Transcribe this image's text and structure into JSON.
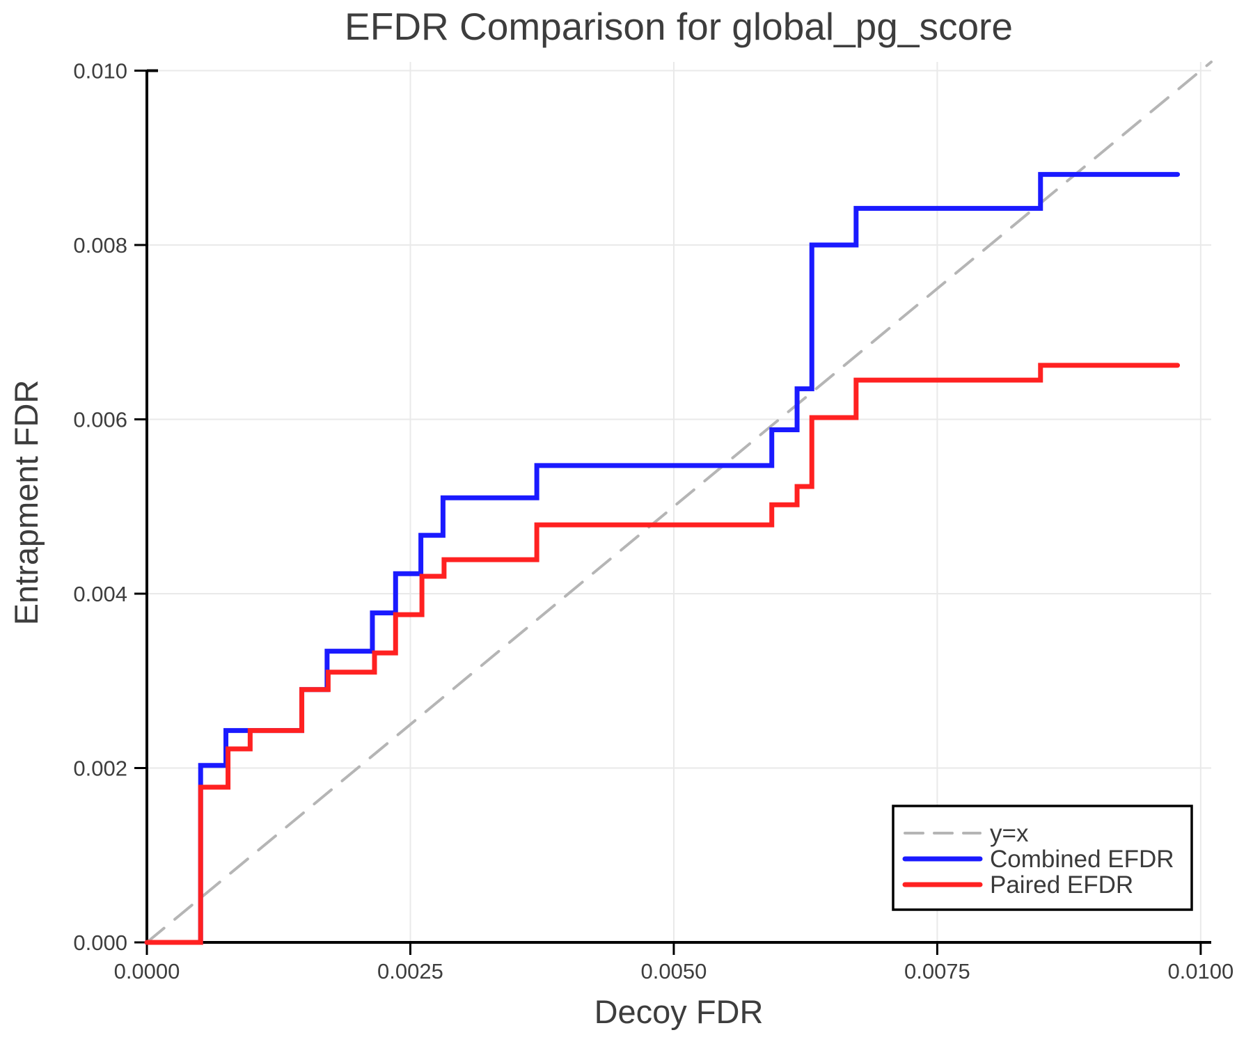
{
  "chart_data": {
    "type": "line",
    "title": "EFDR Comparison for global_pg_score",
    "xlabel": "Decoy FDR",
    "ylabel": "Entrapment FDR",
    "xlim": [
      0,
      0.0101
    ],
    "ylim": [
      0,
      0.0101
    ],
    "grid": true,
    "background": "#ffffff",
    "gridline_color": "#e9e9e9",
    "spine_color": "#000000",
    "tick_text_color": "#3d3d3d",
    "x_ticks": {
      "values": [
        0,
        0.0025,
        0.005,
        0.0075,
        0.01
      ],
      "labels": [
        "0.0000",
        "0.0025",
        "0.0050",
        "0.0075",
        "0.0100"
      ]
    },
    "y_ticks": {
      "values": [
        0,
        0.002,
        0.004,
        0.006,
        0.008,
        0.01
      ],
      "labels": [
        "0.000",
        "0.002",
        "0.004",
        "0.006",
        "0.008",
        "0.010"
      ]
    },
    "legend": {
      "position": "lower right",
      "entries": [
        {
          "label": "y=x",
          "color": "#b5b5b5",
          "style": "dashed"
        },
        {
          "label": "Combined EFDR",
          "color": "#1a1aff",
          "style": "solid"
        },
        {
          "label": "Paired EFDR",
          "color": "#ff2121",
          "style": "solid"
        }
      ]
    },
    "series": [
      {
        "name": "y=x",
        "style": "dashed",
        "color": "#b5b5b5",
        "width": 4,
        "points": [
          [
            0,
            0
          ],
          [
            0.0101,
            0.0101
          ]
        ]
      },
      {
        "name": "Combined EFDR",
        "style": "step-post",
        "color": "#1a1aff",
        "width": 7,
        "points": [
          [
            0,
            0
          ],
          [
            0.00051,
            0.00203
          ],
          [
            0.00075,
            0.00243
          ],
          [
            0.00147,
            0.0029
          ],
          [
            0.00171,
            0.00334
          ],
          [
            0.00214,
            0.00378
          ],
          [
            0.00236,
            0.00423
          ],
          [
            0.0026,
            0.00467
          ],
          [
            0.00281,
            0.0051
          ],
          [
            0.0037,
            0.00547
          ],
          [
            0.00593,
            0.00588
          ],
          [
            0.00617,
            0.00635
          ],
          [
            0.00631,
            0.008
          ],
          [
            0.00673,
            0.00842
          ],
          [
            0.00848,
            0.00881
          ],
          [
            0.00978,
            0.00881
          ]
        ]
      },
      {
        "name": "Paired EFDR",
        "style": "step-post",
        "color": "#ff2121",
        "width": 7,
        "points": [
          [
            0,
            0
          ],
          [
            0.00051,
            0.00178
          ],
          [
            0.00077,
            0.00222
          ],
          [
            0.00098,
            0.00243
          ],
          [
            0.00147,
            0.0029
          ],
          [
            0.00172,
            0.0031
          ],
          [
            0.00216,
            0.00332
          ],
          [
            0.00236,
            0.00376
          ],
          [
            0.00261,
            0.0042
          ],
          [
            0.00282,
            0.00439
          ],
          [
            0.0037,
            0.00479
          ],
          [
            0.00593,
            0.00502
          ],
          [
            0.00617,
            0.00523
          ],
          [
            0.00631,
            0.00602
          ],
          [
            0.00673,
            0.00645
          ],
          [
            0.00848,
            0.00662
          ],
          [
            0.00978,
            0.00662
          ]
        ]
      }
    ]
  }
}
